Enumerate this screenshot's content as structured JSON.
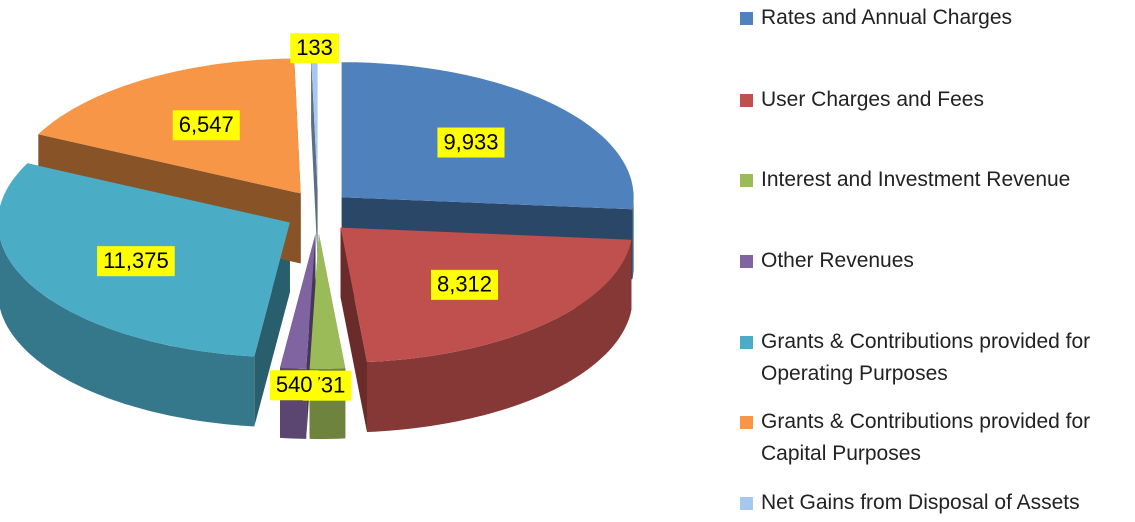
{
  "chart_data": {
    "type": "pie",
    "categories": [
      "Rates and Annual Charges",
      "User Charges and Fees",
      "Interest and Investment Revenue",
      "Other Revenues",
      "Grants & Contributions provided for Operating Purposes",
      "Grants & Contributions provided for Capital Purposes",
      "Net Gains from Disposal of Assets"
    ],
    "values": [
      9933,
      8312,
      731,
      540,
      11375,
      6547,
      133
    ],
    "value_labels": [
      "9,933",
      "8,312",
      "731",
      "540",
      "11,375",
      "6,547",
      "133"
    ],
    "colors": [
      "#4f81bd",
      "#c0504d",
      "#9bbb59",
      "#8064a2",
      "#4bacc6",
      "#f79646",
      "#a6c8ef"
    ]
  }
}
